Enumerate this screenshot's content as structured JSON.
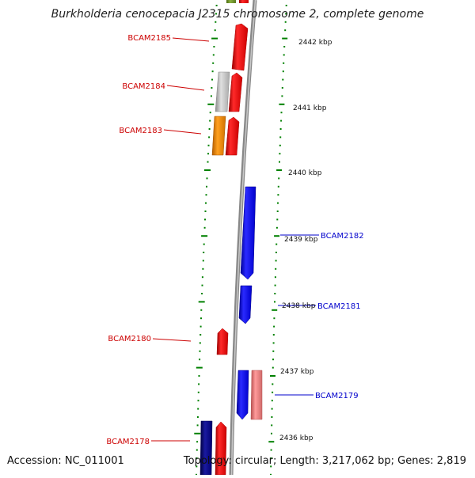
{
  "title": "Burkholderia cenocepacia J2315 chromosome 2, complete genome",
  "footer": {
    "accession": "Accession: NC_011001",
    "topology": "Topology: circular; Length: 3,217,062 bp; Genes: 2,819"
  },
  "colors": {
    "forward_gene": "#ff0000",
    "reverse_gene": "#0000ff",
    "gray_gene": "#bdbdbd",
    "orange_gene": "#ff8c00",
    "pink_gene": "#f08080",
    "navy_gene": "#000080",
    "olive_gene": "#6b8e23",
    "backbone": "#888888",
    "tick": "#008000",
    "label_forward": "#cc0000",
    "label_reverse": "#0000cc"
  },
  "kbp_labels": [
    "2442 kbp",
    "2441 kbp",
    "2440 kbp",
    "2439 kbp",
    "2438 kbp",
    "2437 kbp",
    "2436 kbp"
  ],
  "gene_labels": {
    "left": [
      "BCAM2185",
      "BCAM2184",
      "BCAM2183",
      "BCAM2180",
      "BCAM2178"
    ],
    "right": [
      "BCAM2182",
      "BCAM2181",
      "BCAM2179"
    ]
  }
}
